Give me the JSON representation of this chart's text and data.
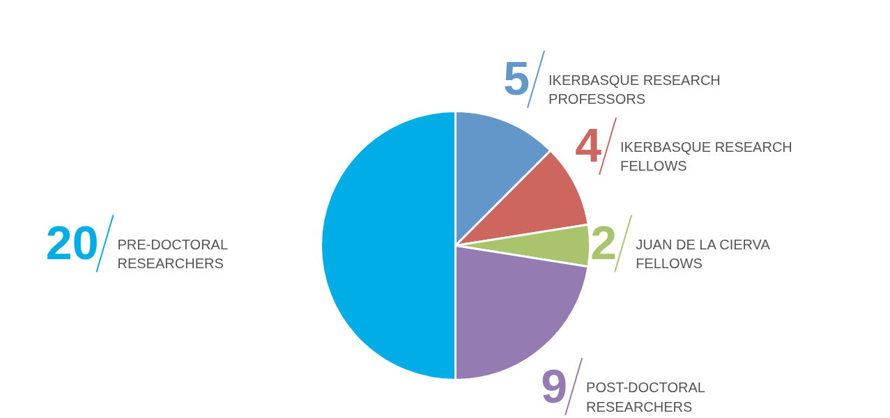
{
  "chart_data": {
    "type": "pie",
    "categories": [
      "IKERBASQUE RESEARCH\nPROFESSORS",
      "IKERBASQUE RESEARCH\nFELLOWS",
      "JUAN DE LA CIERVA\nFELLOWS",
      "POST-DOCTORAL\nRESEARCHERS",
      "PRE-DOCTORAL\nRESEARCHERS"
    ],
    "values": [
      5,
      4,
      2,
      9,
      20
    ],
    "colors": [
      "#6497c9",
      "#cc665e",
      "#a9c46c",
      "#947bb2",
      "#00ade6"
    ],
    "data_labels": true
  }
}
